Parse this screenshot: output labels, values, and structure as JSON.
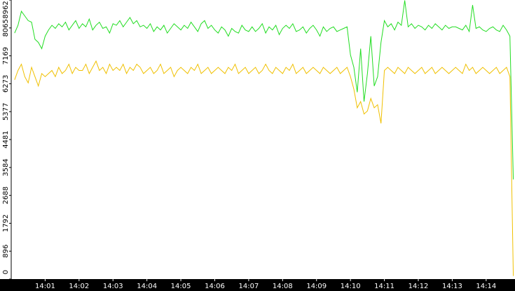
{
  "chart_data": {
    "type": "line",
    "x": [
      840.1,
      840.2,
      840.3,
      840.4,
      840.5,
      840.6,
      840.7,
      840.8,
      840.9,
      841.0,
      841.1,
      841.2,
      841.3,
      841.4,
      841.5,
      841.6,
      841.7,
      841.8,
      841.9,
      842.0,
      842.1,
      842.2,
      842.3,
      842.4,
      842.5,
      842.6,
      842.7,
      842.8,
      842.9,
      843.0,
      843.1,
      843.2,
      843.3,
      843.4,
      843.5,
      843.6,
      843.7,
      843.8,
      843.9,
      844.0,
      844.1,
      844.2,
      844.3,
      844.4,
      844.5,
      844.6,
      844.7,
      844.8,
      844.9,
      845.0,
      845.1,
      845.2,
      845.3,
      845.4,
      845.5,
      845.6,
      845.7,
      845.8,
      845.9,
      846.0,
      846.1,
      846.2,
      846.3,
      846.4,
      846.5,
      846.6,
      846.7,
      846.8,
      846.9,
      847.0,
      847.1,
      847.2,
      847.3,
      847.4,
      847.5,
      847.6,
      847.7,
      847.8,
      847.9,
      848.0,
      848.1,
      848.2,
      848.3,
      848.4,
      848.5,
      848.6,
      848.7,
      848.8,
      848.9,
      849.0,
      849.1,
      849.2,
      849.3,
      849.4,
      849.5,
      849.6,
      849.7,
      849.8,
      849.9,
      850.0,
      850.1,
      850.2,
      850.3,
      850.4,
      850.5,
      850.6,
      850.7,
      850.8,
      850.9,
      851.0,
      851.1,
      851.2,
      851.3,
      851.4,
      851.5,
      851.6,
      851.7,
      851.8,
      851.9,
      852.0,
      852.1,
      852.2,
      852.3,
      852.4,
      852.5,
      852.6,
      852.7,
      852.8,
      852.9,
      853.0,
      853.1,
      853.2,
      853.3,
      853.4,
      853.5,
      853.6,
      853.7,
      853.8,
      853.9,
      854.0,
      854.1,
      854.2,
      854.3,
      854.4,
      854.5,
      854.6,
      854.7,
      854.8
    ],
    "series": [
      {
        "color": "#22dd22",
        "values": [
          7900,
          8150,
          8600,
          8450,
          8300,
          8250,
          7700,
          7600,
          7400,
          7800,
          8000,
          8150,
          8050,
          8200,
          8100,
          8250,
          8000,
          8150,
          8300,
          8050,
          8200,
          8100,
          8350,
          8000,
          8150,
          8250,
          8050,
          8100,
          7900,
          8200,
          8150,
          8300,
          8100,
          8250,
          8400,
          8200,
          8300,
          8100,
          8150,
          8050,
          8200,
          7950,
          8100,
          8000,
          8150,
          7900,
          8050,
          8200,
          8100,
          8000,
          8150,
          8050,
          8250,
          8100,
          7950,
          8200,
          8300,
          8050,
          8150,
          8000,
          7900,
          8100,
          8000,
          7800,
          8050,
          7950,
          7900,
          8150,
          8000,
          7950,
          8100,
          7950,
          8050,
          8200,
          7900,
          8100,
          8000,
          8150,
          7850,
          8050,
          8150,
          8050,
          8200,
          7950,
          8000,
          8100,
          7900,
          8050,
          8150,
          8000,
          7800,
          8100,
          7950,
          8050,
          8100,
          7950,
          8000,
          8050,
          8100,
          7200,
          6800,
          6000,
          7400,
          5700,
          6600,
          7800,
          6200,
          6500,
          7600,
          8300,
          8100,
          8200,
          8000,
          8250,
          8150,
          8950,
          8100,
          8200,
          8050,
          8150,
          8100,
          8000,
          8150,
          8050,
          8200,
          8100,
          8000,
          8150,
          8050,
          8100,
          8100,
          8050,
          8000,
          8150,
          7950,
          8800,
          8050,
          8100,
          8000,
          7950,
          8050,
          8100,
          8000,
          7950,
          8150,
          8000,
          7800,
          3200
        ]
      },
      {
        "color": "#f0c000",
        "values": [
          6400,
          6700,
          6900,
          6500,
          6300,
          6800,
          6500,
          6200,
          6600,
          6500,
          6600,
          6700,
          6500,
          6800,
          6600,
          6700,
          6900,
          6600,
          6800,
          6700,
          6700,
          6900,
          6600,
          6800,
          7000,
          6700,
          6800,
          6600,
          6900,
          6700,
          6800,
          6700,
          6900,
          6600,
          6800,
          6700,
          6900,
          6800,
          6600,
          6700,
          6800,
          6600,
          6700,
          6900,
          6600,
          6700,
          6800,
          6500,
          6700,
          6800,
          6700,
          6600,
          6800,
          6700,
          6900,
          6600,
          6700,
          6800,
          6600,
          6700,
          6800,
          6700,
          6600,
          6800,
          6700,
          6900,
          6600,
          6700,
          6800,
          6600,
          6700,
          6800,
          6600,
          6700,
          6900,
          6700,
          6600,
          6800,
          6700,
          6600,
          6800,
          6700,
          6900,
          6600,
          6700,
          6800,
          6600,
          6700,
          6800,
          6700,
          6600,
          6800,
          6700,
          6600,
          6700,
          6800,
          6600,
          6700,
          6800,
          6500,
          6100,
          5500,
          5700,
          5300,
          5400,
          5800,
          5500,
          5600,
          5000,
          6700,
          6800,
          6700,
          6600,
          6800,
          6700,
          6600,
          6800,
          6700,
          6600,
          6700,
          6800,
          6600,
          6700,
          6800,
          6600,
          6700,
          6800,
          6700,
          6600,
          6700,
          6800,
          6700,
          6600,
          6900,
          6700,
          6800,
          6600,
          6700,
          6800,
          6700,
          6600,
          6700,
          6800,
          6600,
          6700,
          6800,
          6500,
          100
        ]
      }
    ],
    "xlim": [
      840,
      854.85
    ],
    "xticks": [
      {
        "value": 841,
        "label": "14:01"
      },
      {
        "value": 842,
        "label": "14:02"
      },
      {
        "value": 843,
        "label": "14:03"
      },
      {
        "value": 844,
        "label": "14:04"
      },
      {
        "value": 845,
        "label": "14:05"
      },
      {
        "value": 846,
        "label": "14:06"
      },
      {
        "value": 847,
        "label": "14:07"
      },
      {
        "value": 848,
        "label": "14:08"
      },
      {
        "value": 849,
        "label": "14:09"
      },
      {
        "value": 850,
        "label": "14:10"
      },
      {
        "value": 851,
        "label": "14:11"
      },
      {
        "value": 852,
        "label": "14:12"
      },
      {
        "value": 853,
        "label": "14:13"
      },
      {
        "value": 854,
        "label": "14:14"
      }
    ],
    "ylim": [
      0,
      8962
    ],
    "yticks": [
      0,
      896,
      1792,
      2688,
      3584,
      4481,
      5377,
      6273,
      7169,
      8065,
      8962
    ]
  }
}
